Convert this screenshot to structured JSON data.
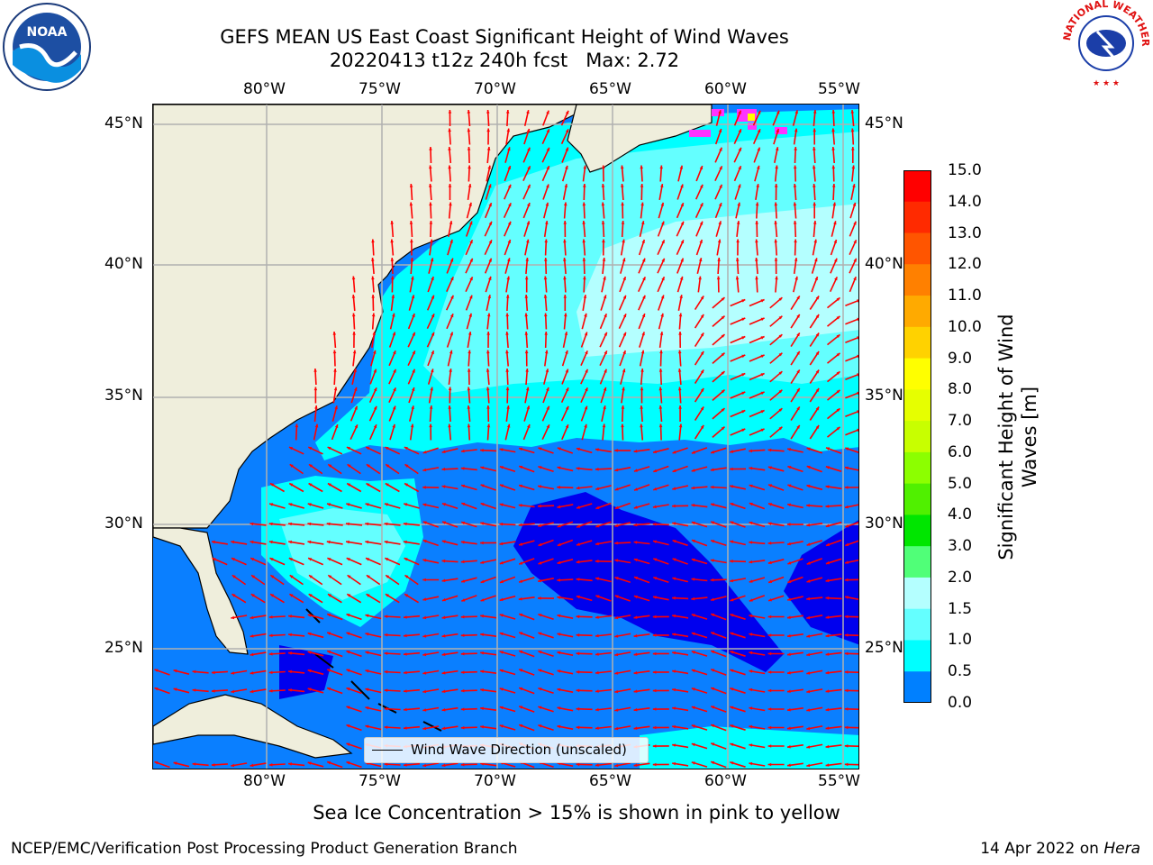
{
  "header": {
    "title_line1": "GEFS MEAN US East Coast Significant Height of Wind Waves",
    "title_line2": "20220413 t12z 240h fcst   Max: 2.72"
  },
  "logos": {
    "left": "NOAA",
    "right": "NATIONAL WEATHER SERVICE",
    "left_ring_text": "NATIONAL OCEANIC AND ATMOSPHERIC ADMINISTRATION · U.S. DEPARTMENT OF COMMERCE"
  },
  "axes": {
    "lon_labels": [
      "80°W",
      "75°W",
      "70°W",
      "65°W",
      "60°W",
      "55°W"
    ],
    "lat_labels": [
      "45°N",
      "40°N",
      "35°N",
      "30°N",
      "25°N"
    ]
  },
  "legend": {
    "label": "Wind Wave Direction (unscaled)"
  },
  "colorbar": {
    "title": "Significant Height of Wind Waves [m]",
    "ticks": [
      "15.0",
      "14.0",
      "13.0",
      "12.0",
      "11.0",
      "10.0",
      "9.0",
      "8.0",
      "7.0",
      "6.0",
      "5.0",
      "4.0",
      "3.0",
      "2.0",
      "1.5",
      "1.0",
      "0.5",
      "0.0"
    ],
    "colors": [
      "#ff0000",
      "#ff2a00",
      "#ff5500",
      "#ff8000",
      "#ffaa00",
      "#ffd200",
      "#ffff00",
      "#e6ff00",
      "#c8ff00",
      "#8cff00",
      "#50f000",
      "#00e600",
      "#50ff78",
      "#b4ffff",
      "#64ffff",
      "#00ffff",
      "#0080ff",
      "#0000ff"
    ]
  },
  "map": {
    "colors": {
      "land": "#efeedc",
      "deep": "#0000ee",
      "blue": "#0a7fff",
      "cyan": "#00ffff",
      "lightcyan": "#64ffff",
      "palecyan": "#b4ffff",
      "arrow": "#ff0000",
      "grid": "#b0b0b0",
      "ice_pink": "#ff33ff"
    }
  },
  "footer": {
    "note": "Sea Ice Concentration > 15% is shown in pink to yellow",
    "left": "NCEP/EMC/Verification Post Processing Product Generation Branch",
    "right_date": "14 Apr 2022 on ",
    "right_host": "Hera"
  }
}
